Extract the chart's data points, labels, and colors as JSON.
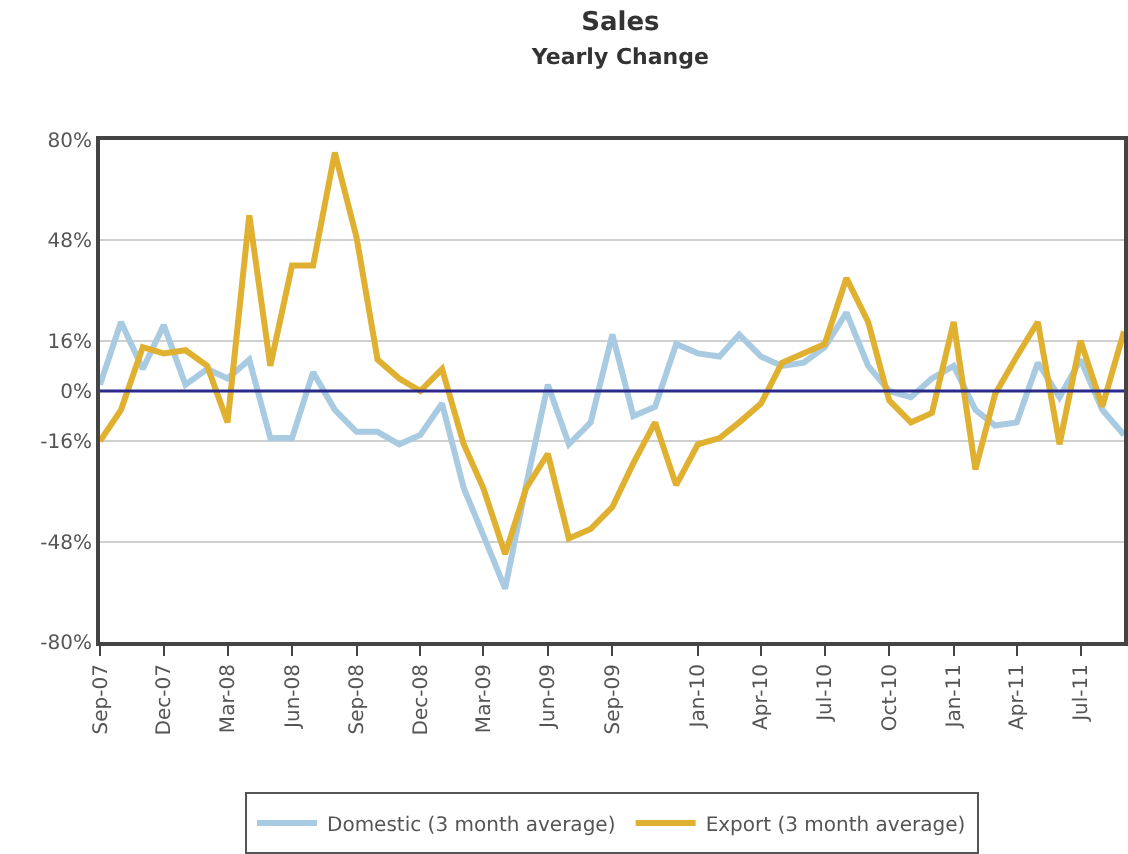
{
  "chart_data": {
    "type": "line",
    "title": "Sales",
    "subtitle": "Yearly Change",
    "x": [
      "2007-09",
      "2007-10",
      "2007-11",
      "2007-12",
      "2008-01",
      "2008-02",
      "2008-03",
      "2008-04",
      "2008-05",
      "2008-06",
      "2008-07",
      "2008-08",
      "2008-09",
      "2008-10",
      "2008-11",
      "2008-12",
      "2009-01",
      "2009-02",
      "2009-03",
      "2009-04",
      "2009-05",
      "2009-06",
      "2009-07",
      "2009-08",
      "2009-09",
      "2009-10",
      "2009-11",
      "2009-12",
      "2010-01",
      "2010-02",
      "2010-03",
      "2010-04",
      "2010-05",
      "2010-06",
      "2010-07",
      "2010-08",
      "2010-09",
      "2010-10",
      "2010-11",
      "2010-12",
      "2011-01",
      "2011-02",
      "2011-03",
      "2011-04",
      "2011-05",
      "2011-06",
      "2011-07",
      "2011-08",
      "2011-09"
    ],
    "series": [
      {
        "name": "Domestic (3 month average)",
        "color": "#a8cbe2",
        "values": [
          2,
          22,
          7,
          21,
          2,
          7,
          4,
          10,
          -15,
          -15,
          6,
          -6,
          -13,
          -13,
          -17,
          -14,
          -4,
          -31,
          -46,
          -63,
          -30,
          2,
          -17,
          -10,
          18,
          -8,
          -5,
          15,
          12,
          11,
          18,
          11,
          8,
          9,
          14,
          25,
          8,
          0,
          -2,
          4,
          8,
          -6,
          -11,
          -10,
          9,
          -2,
          10,
          -6,
          -14
        ]
      },
      {
        "name": "Export (3 month average)",
        "color": "#e0b030",
        "values": [
          -16,
          -6,
          14,
          12,
          13,
          8,
          -10,
          56,
          8,
          40,
          40,
          76,
          49,
          10,
          4,
          0,
          7,
          -17,
          -31,
          -52,
          -31,
          -20,
          -47,
          -44,
          -37,
          -23,
          -10,
          -30,
          -17,
          -15,
          -10,
          -4,
          9,
          12,
          15,
          36,
          22,
          -3,
          -10,
          -7,
          22,
          -25,
          -1,
          11,
          22,
          -17,
          16,
          -5,
          19
        ]
      }
    ],
    "xlim": [
      "2007-09-01",
      "2011-09-01"
    ],
    "xticks": [
      {
        "value": "2007-09",
        "label": "Sep-07"
      },
      {
        "value": "2007-12",
        "label": "Dec-07"
      },
      {
        "value": "2008-03",
        "label": "Mar-08"
      },
      {
        "value": "2008-06",
        "label": "Jun-08"
      },
      {
        "value": "2008-09",
        "label": "Sep-08"
      },
      {
        "value": "2008-12",
        "label": "Dec-08"
      },
      {
        "value": "2009-03",
        "label": "Mar-09"
      },
      {
        "value": "2009-06",
        "label": "Jun-09"
      },
      {
        "value": "2009-09",
        "label": "Sep-09"
      },
      {
        "value": "2010-01",
        "label": "Jan-10"
      },
      {
        "value": "2010-04",
        "label": "Apr-10"
      },
      {
        "value": "2010-07",
        "label": "Jul-10"
      },
      {
        "value": "2010-10",
        "label": "Oct-10"
      },
      {
        "value": "2011-01",
        "label": "Jan-11"
      },
      {
        "value": "2011-04",
        "label": "Apr-11"
      },
      {
        "value": "2011-07",
        "label": "Jul-11"
      }
    ],
    "ylim": [
      -80,
      80
    ],
    "yticks": [
      {
        "value": -80,
        "label": "-80%"
      },
      {
        "value": -48,
        "label": "-48%"
      },
      {
        "value": -16,
        "label": "-16%"
      },
      {
        "value": 0,
        "label": "0%"
      },
      {
        "value": 16,
        "label": "16%"
      },
      {
        "value": 48,
        "label": "48%"
      },
      {
        "value": 80,
        "label": "80%"
      }
    ],
    "ref_lines": [
      {
        "axis": "y",
        "value": 0,
        "color": "#2a2a8a"
      }
    ],
    "grid": "y",
    "legend": "bottom",
    "line_style": "solid",
    "marker": "none"
  }
}
